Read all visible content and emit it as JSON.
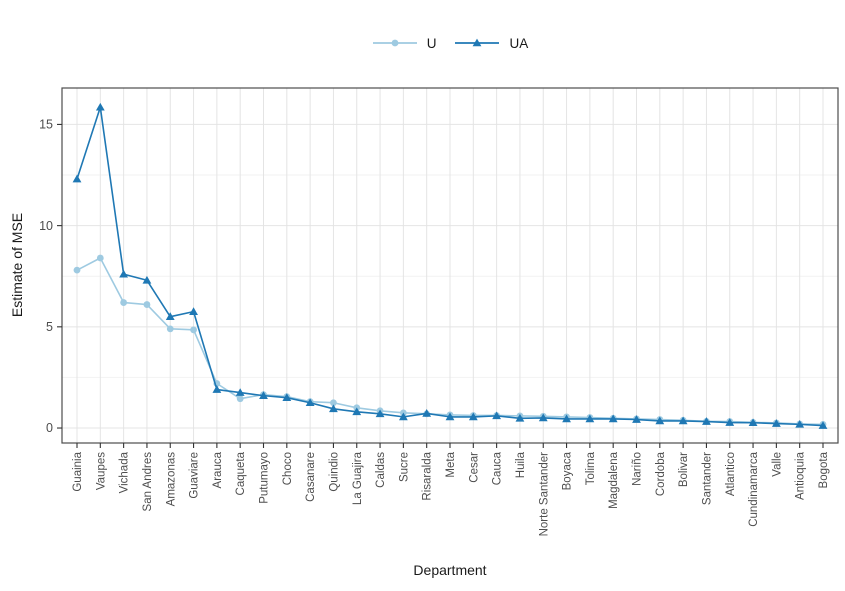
{
  "chart_data": {
    "type": "line",
    "title": "",
    "xlabel": "Department",
    "ylabel": "Estimate of MSE",
    "categories": [
      "Guainia",
      "Vaupes",
      "Vichada",
      "San Andres",
      "Amazonas",
      "Guaviare",
      "Arauca",
      "Caqueta",
      "Putumayo",
      "Choco",
      "Casanare",
      "Quindio",
      "La Guajira",
      "Caldas",
      "Sucre",
      "Risaralda",
      "Meta",
      "Cesar",
      "Cauca",
      "Huila",
      "Norte Santander",
      "Boyaca",
      "Tolima",
      "Magdalena",
      "Nariño",
      "Cordoba",
      "Bolivar",
      "Santander",
      "Atlantico",
      "Cundinamarca",
      "Valle",
      "Antioquia",
      "Bogota"
    ],
    "series": [
      {
        "name": "U",
        "marker": "circle",
        "color": "#9ecae1",
        "values": [
          7.8,
          8.4,
          6.2,
          6.1,
          4.9,
          4.85,
          2.2,
          1.45,
          1.65,
          1.55,
          1.3,
          1.25,
          1.0,
          0.85,
          0.75,
          0.7,
          0.65,
          0.62,
          0.62,
          0.6,
          0.58,
          0.55,
          0.52,
          0.48,
          0.45,
          0.42,
          0.38,
          0.33,
          0.32,
          0.28,
          0.25,
          0.2,
          0.18
        ]
      },
      {
        "name": "UA",
        "marker": "triangle",
        "color": "#1f78b4",
        "values": [
          12.3,
          15.85,
          7.6,
          7.3,
          5.5,
          5.75,
          1.9,
          1.75,
          1.6,
          1.5,
          1.25,
          0.95,
          0.8,
          0.7,
          0.55,
          0.72,
          0.55,
          0.55,
          0.6,
          0.48,
          0.5,
          0.45,
          0.45,
          0.45,
          0.42,
          0.35,
          0.35,
          0.32,
          0.27,
          0.26,
          0.22,
          0.18,
          0.12
        ]
      }
    ],
    "yticks": [
      0,
      5,
      10,
      15
    ],
    "yminor": [
      2.5,
      7.5,
      12.5
    ],
    "ylim": [
      -0.74,
      16.8
    ],
    "grid": "major-and-minor",
    "legend_position": "top-center"
  },
  "colors": {
    "u_series": "#9ecae1",
    "ua_series": "#1f78b4",
    "grid_major": "#e4e4e4",
    "grid_minor": "#f2f2f2",
    "panel_border": "#4d4d4d",
    "tick_mark": "#333333",
    "axis_text": "#4d4d4d",
    "axis_title": "#1a1a1a",
    "background": "#ffffff"
  }
}
